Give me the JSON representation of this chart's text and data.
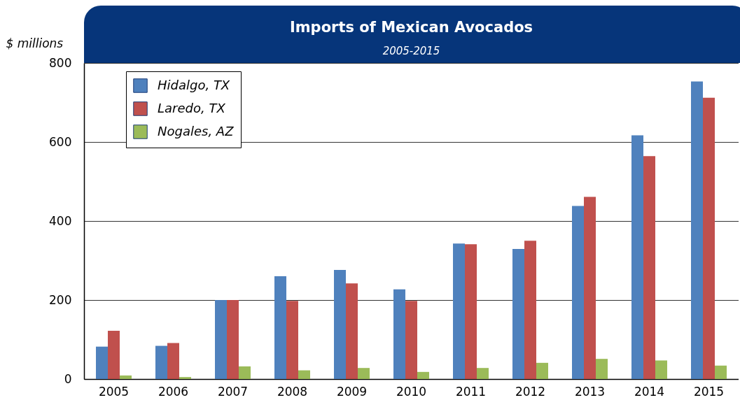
{
  "chart_data": {
    "type": "bar",
    "title": "Imports of Mexican Avocados",
    "subtitle": "2005-2015",
    "ylabel": "$ millions",
    "categories": [
      "2005",
      "2006",
      "2007",
      "2008",
      "2009",
      "2010",
      "2011",
      "2012",
      "2013",
      "2014",
      "2015"
    ],
    "series": [
      {
        "name": "Hidalgo, TX",
        "color": "#4f81bd",
        "values": [
          82,
          84,
          200,
          260,
          276,
          227,
          343,
          329,
          438,
          617,
          753
        ]
      },
      {
        "name": "Laredo, TX",
        "color": "#c0504d",
        "values": [
          122,
          91,
          200,
          198,
          242,
          198,
          341,
          350,
          461,
          564,
          712
        ]
      },
      {
        "name": "Nogales, AZ",
        "color": "#9bbb59",
        "values": [
          9,
          5,
          32,
          22,
          28,
          18,
          28,
          41,
          51,
          47,
          34
        ]
      }
    ],
    "ylim": [
      0,
      800
    ],
    "yticks": [
      0,
      200,
      400,
      600,
      800
    ],
    "grid": "y",
    "legend": "top left"
  }
}
